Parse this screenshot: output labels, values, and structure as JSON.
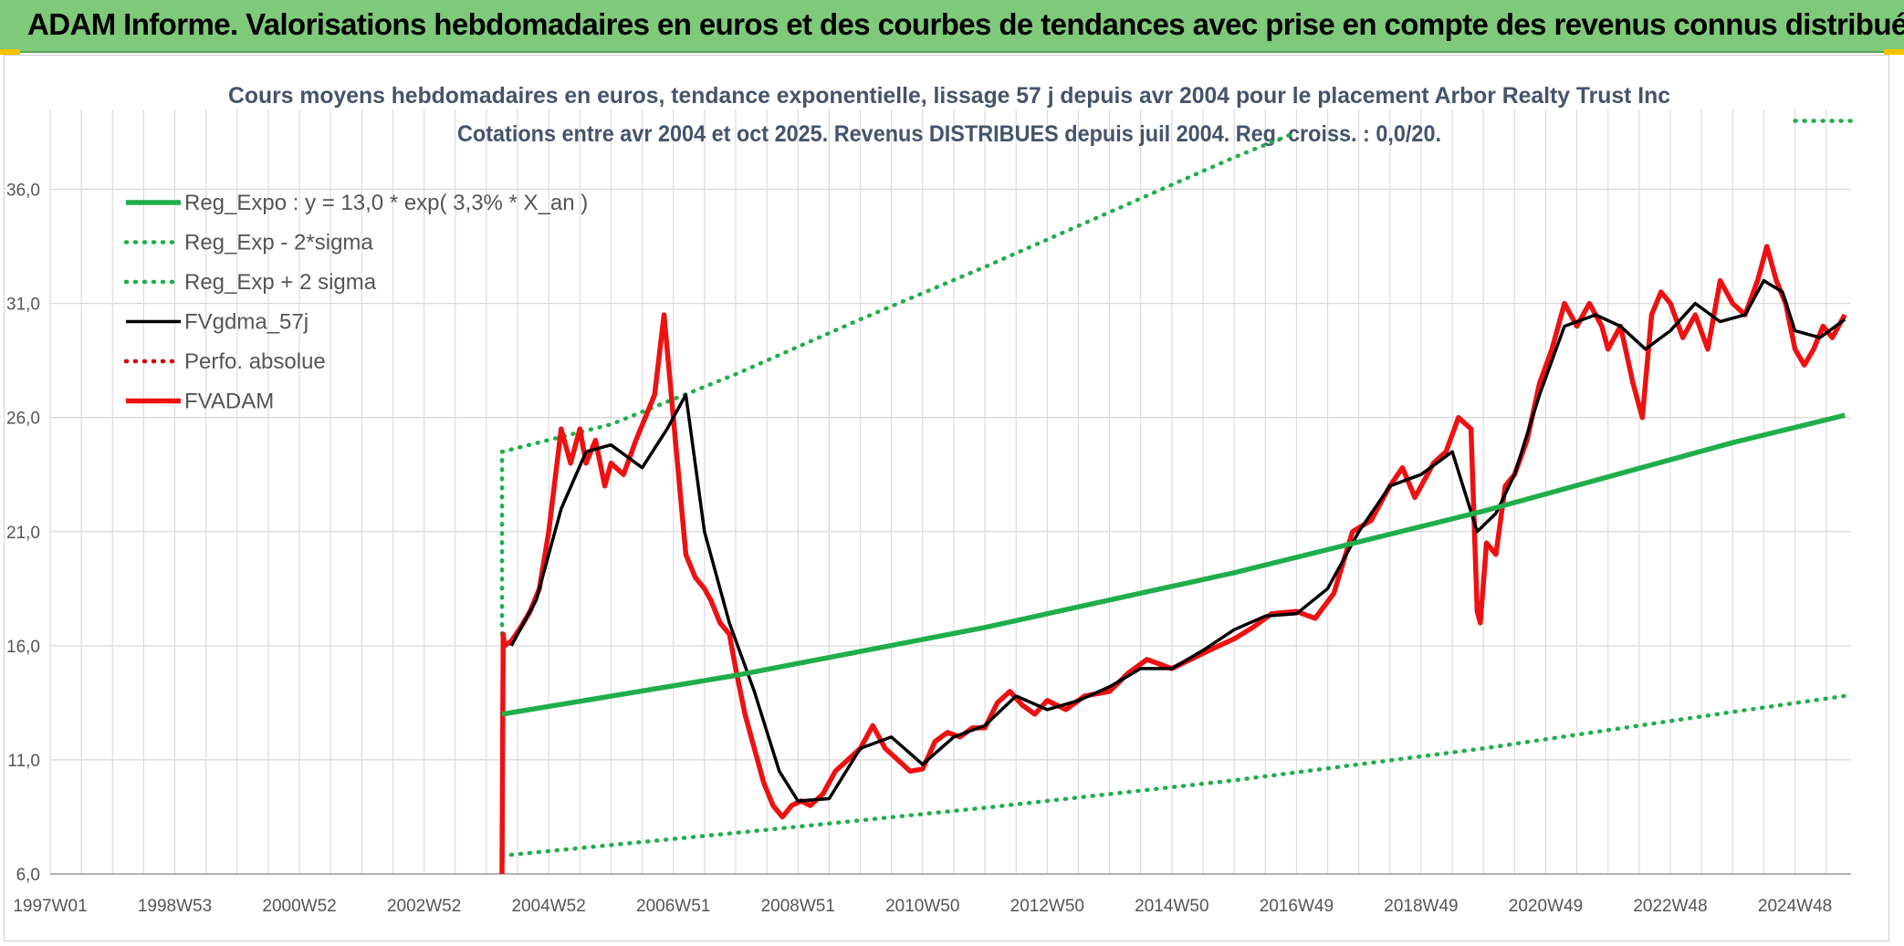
{
  "banner": {
    "title": "ADAM Informe. Valorisations hebdomadaires en euros et des courbes de tendances avec prise en compte des revenus connus distribués"
  },
  "colors": {
    "banner": "#7fc97a",
    "reg_green": "#1fae4b",
    "avg_black": "#000000",
    "price_red": "#ee1111",
    "perf_red": "#cc0000",
    "grid": "#d9d9d9"
  },
  "chart_data": {
    "type": "line",
    "title": "Cours moyens hebdomadaires en euros, tendance exponentielle, lissage 57 j depuis avr 2004 pour le placement Arbor Realty Trust Inc",
    "subtitle": "Cotations entre avr 2004 et oct 2025. Revenus DISTRIBUES depuis juil 2004. Reg. croiss. : 0,0/20.",
    "x_tick_labels": [
      "1997W01",
      "1998W53",
      "2000W52",
      "2002W52",
      "2004W52",
      "2006W51",
      "2008W51",
      "2010W50",
      "2012W50",
      "2014W50",
      "2016W49",
      "2018W49",
      "2020W49",
      "2022W48",
      "2024W48"
    ],
    "x_range": [
      1997.0,
      2025.9
    ],
    "y_ticks": [
      "6,0",
      "11,0",
      "16,0",
      "21,0",
      "26,0",
      "31,0",
      "36,0"
    ],
    "ylim": [
      6,
      39.5
    ],
    "grid": true,
    "legend_position": "top-left",
    "series": [
      {
        "name": "Reg_Expo : y = 13,0 * exp( 3,3% *  X_an )",
        "style": "solid-thick",
        "color": "#1fae4b",
        "x": [
          2004.25,
          2008.0,
          2012.0,
          2016.0,
          2020.0,
          2024.0,
          2025.8
        ],
        "y": [
          13.0,
          14.7,
          16.8,
          19.2,
          21.9,
          24.9,
          26.1
        ]
      },
      {
        "name": "Reg_Exp - 2*sigma",
        "style": "dotted",
        "color": "#1fae4b",
        "x": [
          2004.25,
          2008.0,
          2012.0,
          2016.0,
          2020.0,
          2024.0,
          2025.8
        ],
        "y": [
          6.8,
          7.8,
          8.9,
          10.1,
          11.5,
          13.1,
          13.8
        ]
      },
      {
        "name": "Reg_Exp + 2 sigma",
        "style": "dotted",
        "color": "#1fae4b",
        "x": [
          2004.25,
          2004.25,
          2006.0,
          2008.0,
          2010.0,
          2012.0,
          2014.0,
          2016.0,
          2017.0
        ],
        "y": [
          16.5,
          24.5,
          25.7,
          27.9,
          30.3,
          32.6,
          35.0,
          37.4,
          38.5
        ],
        "x_end_segment": [
          2025.0,
          2025.9
        ],
        "y_end_segment": [
          39.0,
          39.0
        ]
      },
      {
        "name": "FVgdma_57j",
        "style": "solid",
        "color": "#000000",
        "x": [
          2004.4,
          2004.8,
          2005.2,
          2005.6,
          2006.0,
          2006.5,
          2006.9,
          2007.2,
          2007.5,
          2007.9,
          2008.3,
          2008.7,
          2009.0,
          2009.5,
          2010.0,
          2010.5,
          2011.0,
          2011.5,
          2012.0,
          2012.5,
          2013.0,
          2013.5,
          2014.0,
          2014.5,
          2015.0,
          2015.5,
          2016.0,
          2016.5,
          2017.0,
          2017.5,
          2018.0,
          2018.5,
          2019.0,
          2019.5,
          2019.9,
          2020.2,
          2020.5,
          2020.9,
          2021.3,
          2021.8,
          2022.2,
          2022.6,
          2023.0,
          2023.4,
          2023.8,
          2024.2,
          2024.5,
          2024.8,
          2025.0,
          2025.4,
          2025.8
        ],
        "y": [
          16.0,
          18.0,
          22.0,
          24.5,
          24.8,
          23.8,
          25.5,
          27.0,
          21.0,
          17.0,
          14.0,
          10.5,
          9.2,
          9.3,
          11.5,
          12.0,
          10.8,
          12.0,
          12.5,
          13.8,
          13.2,
          13.6,
          14.2,
          15.0,
          15.0,
          15.8,
          16.7,
          17.3,
          17.4,
          18.5,
          21.0,
          23.0,
          23.5,
          24.5,
          21.0,
          21.8,
          23.5,
          27.0,
          30.0,
          30.5,
          30.0,
          29.0,
          29.8,
          31.0,
          30.2,
          30.5,
          32.0,
          31.5,
          29.8,
          29.5,
          30.3
        ]
      },
      {
        "name": "Perfo. absolue",
        "style": "dotted",
        "color": "#cc0000",
        "x": [],
        "y": []
      },
      {
        "name": "FVADAM",
        "style": "solid-thick",
        "color": "#ee1111",
        "x": [
          2004.25,
          2004.27,
          2004.29,
          2004.4,
          2004.55,
          2004.7,
          2004.85,
          2005.0,
          2005.2,
          2005.35,
          2005.5,
          2005.6,
          2005.75,
          2005.9,
          2006.0,
          2006.2,
          2006.4,
          2006.55,
          2006.7,
          2006.85,
          2007.0,
          2007.05,
          2007.2,
          2007.35,
          2007.5,
          2007.6,
          2007.75,
          2007.9,
          2008.0,
          2008.15,
          2008.3,
          2008.45,
          2008.6,
          2008.75,
          2008.9,
          2009.05,
          2009.2,
          2009.4,
          2009.6,
          2009.8,
          2010.0,
          2010.2,
          2010.4,
          2010.6,
          2010.8,
          2011.0,
          2011.2,
          2011.4,
          2011.6,
          2011.8,
          2012.0,
          2012.2,
          2012.4,
          2012.6,
          2012.8,
          2013.0,
          2013.3,
          2013.6,
          2014.0,
          2014.3,
          2014.6,
          2015.0,
          2015.3,
          2015.6,
          2016.0,
          2016.3,
          2016.6,
          2017.0,
          2017.3,
          2017.6,
          2017.9,
          2018.2,
          2018.5,
          2018.7,
          2018.9,
          2019.2,
          2019.4,
          2019.6,
          2019.8,
          2019.9,
          2019.95,
          2020.05,
          2020.2,
          2020.35,
          2020.5,
          2020.7,
          2020.9,
          2021.1,
          2021.3,
          2021.5,
          2021.7,
          2021.9,
          2022.0,
          2022.2,
          2022.4,
          2022.55,
          2022.7,
          2022.85,
          2023.0,
          2023.2,
          2023.4,
          2023.6,
          2023.8,
          2024.0,
          2024.2,
          2024.4,
          2024.55,
          2024.7,
          2024.85,
          2025.0,
          2025.15,
          2025.3,
          2025.45,
          2025.6,
          2025.8
        ],
        "y": [
          6.0,
          16.5,
          16.0,
          16.2,
          16.8,
          17.5,
          18.5,
          21.0,
          25.5,
          24.0,
          25.5,
          24.0,
          25.0,
          23.0,
          24.0,
          23.5,
          25.0,
          26.0,
          27.0,
          30.5,
          26.0,
          24.5,
          20.0,
          19.0,
          18.5,
          18.0,
          17.0,
          16.5,
          15.0,
          13.0,
          11.5,
          10.0,
          9.0,
          8.5,
          9.0,
          9.2,
          9.0,
          9.5,
          10.5,
          11.0,
          11.5,
          12.5,
          11.5,
          11.0,
          10.5,
          10.6,
          11.8,
          12.2,
          12.0,
          12.4,
          12.4,
          13.5,
          14.0,
          13.4,
          13.0,
          13.6,
          13.2,
          13.8,
          14.0,
          14.8,
          15.4,
          15.0,
          15.4,
          15.8,
          16.3,
          16.8,
          17.4,
          17.5,
          17.2,
          18.3,
          21.0,
          21.5,
          23.0,
          23.8,
          22.5,
          24.0,
          24.5,
          26.0,
          25.5,
          17.5,
          17.0,
          20.5,
          20.0,
          23.0,
          23.5,
          25.0,
          27.5,
          29.0,
          31.0,
          30.0,
          31.0,
          30.0,
          29.0,
          30.0,
          27.5,
          26.0,
          30.5,
          31.5,
          31.0,
          29.5,
          30.5,
          29.0,
          32.0,
          31.0,
          30.5,
          32.0,
          33.5,
          32.0,
          31.0,
          29.0,
          28.3,
          29.0,
          30.0,
          29.5,
          30.5
        ]
      }
    ]
  }
}
